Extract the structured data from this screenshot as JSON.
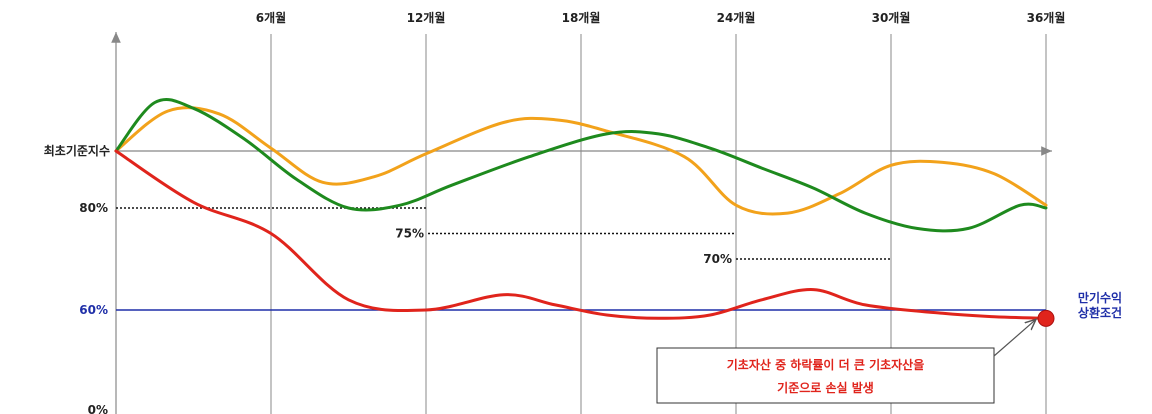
{
  "chart_data": {
    "type": "line",
    "x_ticks": [
      "6개월",
      "12개월",
      "18개월",
      "24개월",
      "30개월",
      "36개월"
    ],
    "y_levels": [
      {
        "label": "최초기준지수",
        "value": 100
      },
      {
        "label": "80%",
        "value": 80
      },
      {
        "label": "60%",
        "value": 60
      },
      {
        "label": "0%",
        "value": 0
      }
    ],
    "barriers": [
      {
        "label": "80%",
        "value": 80,
        "from_month": 0,
        "to_month": 12
      },
      {
        "label": "75%",
        "value": 75,
        "from_month": 12,
        "to_month": 24
      },
      {
        "label": "70%",
        "value": 70,
        "from_month": 24,
        "to_month": 30
      }
    ],
    "maturity_barrier": {
      "value": 60,
      "label": "만기수익 상환조건",
      "label_lines": [
        "만기수익",
        "상환조건"
      ]
    },
    "series": [
      {
        "color": "#f2a21b",
        "points": [
          [
            0,
            100
          ],
          [
            2,
            114
          ],
          [
            4,
            113
          ],
          [
            6,
            101
          ],
          [
            8,
            89
          ],
          [
            10,
            91
          ],
          [
            12,
            99
          ],
          [
            15,
            110
          ],
          [
            17,
            111
          ],
          [
            19,
            107
          ],
          [
            22,
            98
          ],
          [
            24,
            81
          ],
          [
            26,
            79
          ],
          [
            28,
            85
          ],
          [
            30,
            95
          ],
          [
            32,
            96
          ],
          [
            34,
            92
          ],
          [
            36,
            81
          ]
        ]
      },
      {
        "color": "#1e8a1e",
        "points": [
          [
            0,
            100
          ],
          [
            1.5,
            117
          ],
          [
            3,
            115
          ],
          [
            5,
            104
          ],
          [
            7,
            90
          ],
          [
            9,
            80
          ],
          [
            11,
            81
          ],
          [
            13,
            88
          ],
          [
            16,
            98
          ],
          [
            19,
            106
          ],
          [
            21,
            106
          ],
          [
            23,
            101
          ],
          [
            25,
            94
          ],
          [
            27,
            87
          ],
          [
            29,
            79
          ],
          [
            31,
            76
          ],
          [
            33,
            76
          ],
          [
            35,
            81
          ],
          [
            36,
            80
          ]
        ]
      },
      {
        "color": "#e0241c",
        "points": [
          [
            0,
            100
          ],
          [
            3,
            82
          ],
          [
            6,
            75
          ],
          [
            9,
            62
          ],
          [
            12,
            60
          ],
          [
            15,
            63
          ],
          [
            17,
            61
          ],
          [
            19,
            57
          ],
          [
            21,
            55
          ],
          [
            23,
            57
          ],
          [
            25,
            62
          ],
          [
            27,
            64
          ],
          [
            29,
            61
          ],
          [
            32,
            58
          ],
          [
            34,
            56
          ],
          [
            36,
            55
          ]
        ]
      }
    ],
    "marker": {
      "month": 36,
      "value": 55,
      "color": "#e0241c"
    },
    "annotation": {
      "lines": [
        "기초자산 중 하락률이 더 큰 기초자산을",
        "기준으로 손실 발생"
      ]
    },
    "colors": {
      "barrier_line": "#1f2fa8",
      "axis": "#888888",
      "grid": "#8a8a8a"
    }
  }
}
